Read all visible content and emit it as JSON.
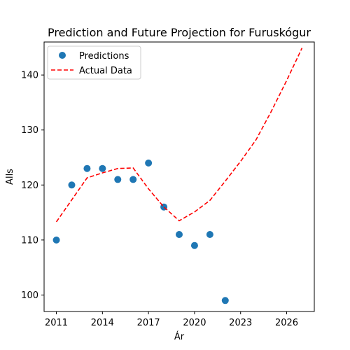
{
  "chart_data": {
    "type": "scatter",
    "title": "Prediction and Future Projection for Furuskógur",
    "xlabel": "Ár",
    "ylabel": "Alls",
    "xlim": [
      2010.2,
      2027.8
    ],
    "ylim": [
      97,
      146
    ],
    "xticks": [
      2011,
      2014,
      2017,
      2020,
      2023,
      2026
    ],
    "yticks": [
      100,
      110,
      120,
      130,
      140
    ],
    "grid": false,
    "legend_position": "top-left",
    "series": [
      {
        "name": "Predictions",
        "kind": "scatter",
        "color": "#1f77b4",
        "x": [
          2011,
          2012,
          2013,
          2014,
          2015,
          2016,
          2017,
          2018,
          2019,
          2020,
          2021,
          2022
        ],
        "y": [
          110,
          120,
          123,
          123,
          121,
          121,
          124,
          116,
          111,
          109,
          111,
          99
        ]
      },
      {
        "name": "Actual Data",
        "kind": "line",
        "style": "dashed",
        "color": "#ff0000",
        "x": [
          2011,
          2012,
          2013,
          2014,
          2015,
          2016,
          2017,
          2018,
          2019,
          2020,
          2021,
          2022,
          2023,
          2024,
          2025,
          2026,
          2027
        ],
        "y": [
          113.3,
          117.3,
          121.3,
          122.2,
          123.0,
          123.1,
          119.3,
          116.0,
          113.5,
          115.1,
          117.2,
          120.7,
          124.3,
          128.2,
          133.4,
          139.0,
          144.9
        ]
      }
    ]
  }
}
